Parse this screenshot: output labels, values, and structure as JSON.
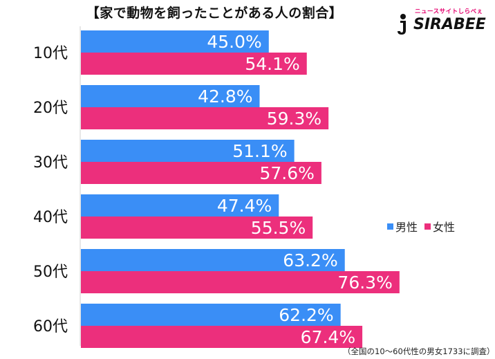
{
  "title": "【家で動物を飼ったことがある人の割合】",
  "logo": {
    "tagline": "ニュースサイトしらべぇ",
    "brand": "SIRABEE"
  },
  "legend": [
    {
      "label": "男性",
      "color": "#3a8ef6"
    },
    {
      "label": "女性",
      "color": "#ec2f7c"
    }
  ],
  "footnote": "（全国の10〜60代性の男女1733に調査）",
  "chart_data": {
    "type": "bar",
    "orientation": "horizontal",
    "title": "【家で動物を飼ったことがある人の割合】",
    "categories": [
      "10代",
      "20代",
      "30代",
      "40代",
      "50代",
      "60代"
    ],
    "series": [
      {
        "name": "男性",
        "color": "#3a8ef6",
        "values": [
          45.0,
          42.8,
          51.1,
          47.4,
          63.2,
          62.2
        ],
        "labels": [
          "45.0%",
          "42.8%",
          "51.1%",
          "47.4%",
          "63.2%",
          "62.2%"
        ]
      },
      {
        "name": "女性",
        "color": "#ec2f7c",
        "values": [
          54.1,
          59.3,
          57.6,
          55.5,
          76.3,
          67.4
        ],
        "labels": [
          "54.1%",
          "59.3%",
          "57.6%",
          "55.5%",
          "76.3%",
          "67.4%"
        ]
      }
    ],
    "xlim": [
      0,
      100
    ],
    "grid": false,
    "legend_position": "right"
  }
}
